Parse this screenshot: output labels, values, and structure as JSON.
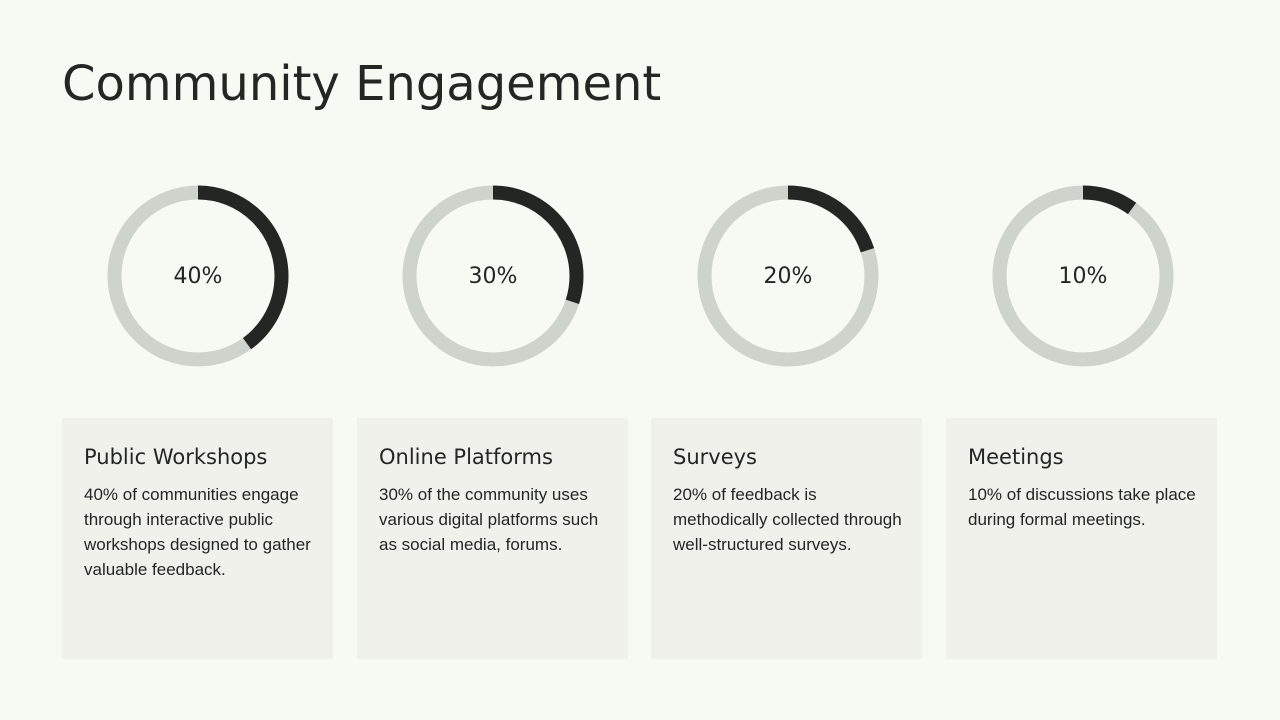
{
  "title": "Community Engagement",
  "colors": {
    "background": "#f6faf3",
    "track": "#ced3cc",
    "arc": "#232623",
    "card": "#f1f1ec",
    "text": "#232623"
  },
  "chart_data": {
    "type": "donut",
    "series": [
      {
        "category": "Public Workshops",
        "value": 40,
        "label": "40%"
      },
      {
        "category": "Online Platforms",
        "value": 30,
        "label": "30%"
      },
      {
        "category": "Surveys",
        "value": 20,
        "label": "20%"
      },
      {
        "category": "Meetings",
        "value": 10,
        "label": "10%"
      }
    ]
  },
  "cards": [
    {
      "title": "Public Workshops",
      "text": "40% of communities engage through interactive public workshops designed to gather valuable feedback."
    },
    {
      "title": "Online Platforms",
      "text": "30% of the community uses various digital platforms such as social media, forums."
    },
    {
      "title": "Surveys",
      "text": "20% of feedback is methodically collected through well-structured surveys."
    },
    {
      "title": "Meetings",
      "text": "10% of discussions take place during formal meetings."
    }
  ]
}
